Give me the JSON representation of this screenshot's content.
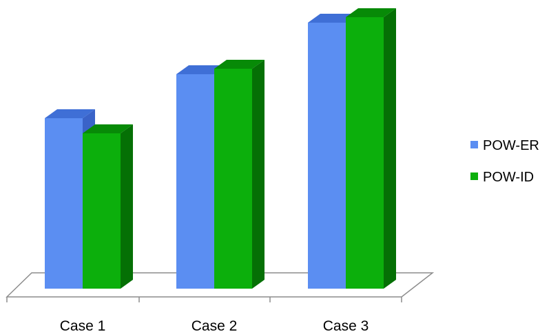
{
  "chart_data": {
    "type": "bar",
    "title": "",
    "xlabel": "",
    "ylabel": "",
    "categories": [
      "Case 1",
      "Case 2",
      "Case 3"
    ],
    "series": [
      {
        "name": "POW-ER",
        "values": [
          248,
          312,
          387
        ],
        "color": "#5b8ef2",
        "top_color": "#3f6fd6",
        "side_color": "#3a63c8"
      },
      {
        "name": "POW-ID",
        "values": [
          226,
          320,
          395
        ],
        "color": "#0caf0c",
        "top_color": "#078a07",
        "side_color": "#057005"
      }
    ],
    "ylim": [
      0,
      420
    ],
    "grid": false,
    "legend": "right",
    "floor_color": "#ffffff",
    "axis_color": "#8c8c8c"
  }
}
